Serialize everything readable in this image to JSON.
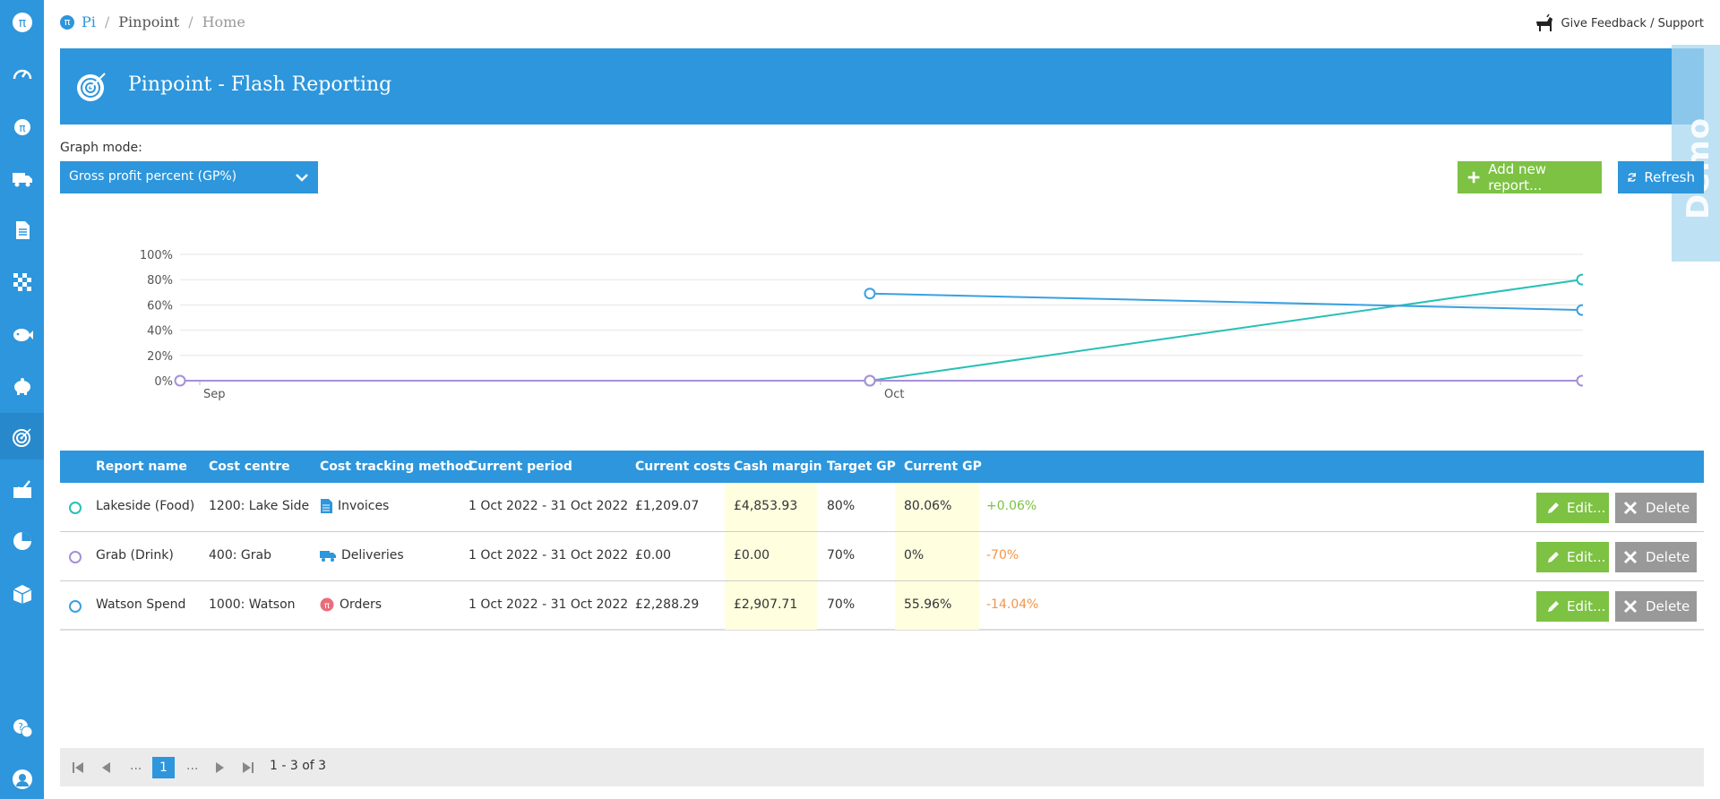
{
  "breadcrumb": {
    "root": "Pi",
    "section": "Pinpoint",
    "current": "Home",
    "logo_glyph": "π"
  },
  "feedback": {
    "label": "Give Feedback / Support",
    "icon": "dog-icon"
  },
  "banner": {
    "title": "Pinpoint - Flash Reporting",
    "icon": "target-icon"
  },
  "demo_ribbon": {
    "label": "Demo Site"
  },
  "graph_mode": {
    "label": "Graph mode:",
    "selected": "Gross profit percent (GP%)"
  },
  "actions": {
    "add_label": "Add new report...",
    "refresh_label": "Refresh"
  },
  "colors": {
    "accent": "#2d96dc",
    "green": "#7dc243",
    "teal": "#27c0b8",
    "purple": "#a78fd8",
    "orange": "#f0964a"
  },
  "chart_data": {
    "type": "line",
    "ylim": [
      0,
      100
    ],
    "y_ticks": [
      "100%",
      "80%",
      "60%",
      "40%",
      "20%",
      "0%"
    ],
    "x_ticks": [
      "Sep",
      "Oct"
    ],
    "series": [
      {
        "name": "Lakeside (Food)",
        "color": "#27c0b8",
        "points": [
          [
            2,
            0
          ],
          [
            3,
            80.06
          ]
        ]
      },
      {
        "name": "Grab (Drink)",
        "color": "#a78fd8",
        "points": [
          [
            1,
            0
          ],
          [
            2,
            0
          ],
          [
            3,
            0
          ]
        ]
      },
      {
        "name": "Watson Spend",
        "color": "#3aa0e0",
        "points": [
          [
            2,
            69
          ],
          [
            3,
            55.96
          ]
        ]
      }
    ]
  },
  "table": {
    "headers": [
      "Report name",
      "Cost centre",
      "Cost tracking method",
      "Current period",
      "Current costs",
      "Cash margin",
      "Target GP",
      "Current GP"
    ],
    "rows": [
      {
        "name": "Lakeside (Food)",
        "cost_centre": "1200: Lake Side",
        "method": "Invoices",
        "period": "1 Oct 2022 - 31 Oct 2022",
        "costs": "£1,209.07",
        "margin": "£4,853.93",
        "target": "80%",
        "current": "80.06%",
        "delta": "+0.06%"
      },
      {
        "name": "Grab (Drink)",
        "cost_centre": "400: Grab",
        "method": "Deliveries",
        "period": "1 Oct 2022 - 31 Oct 2022",
        "costs": "£0.00",
        "margin": "£0.00",
        "target": "70%",
        "current": "0%",
        "delta": "-70%"
      },
      {
        "name": "Watson Spend",
        "cost_centre": "1000: Watson",
        "method": "Orders",
        "period": "1 Oct 2022 - 31 Oct 2022",
        "costs": "£2,288.29",
        "margin": "£2,907.71",
        "target": "70%",
        "current": "55.96%",
        "delta": "-14.04%"
      }
    ],
    "edit_label": "Edit...",
    "delete_label": "Delete"
  },
  "pager": {
    "ellipsis": "...",
    "current_page": "1",
    "info": "1 - 3 of 3"
  }
}
